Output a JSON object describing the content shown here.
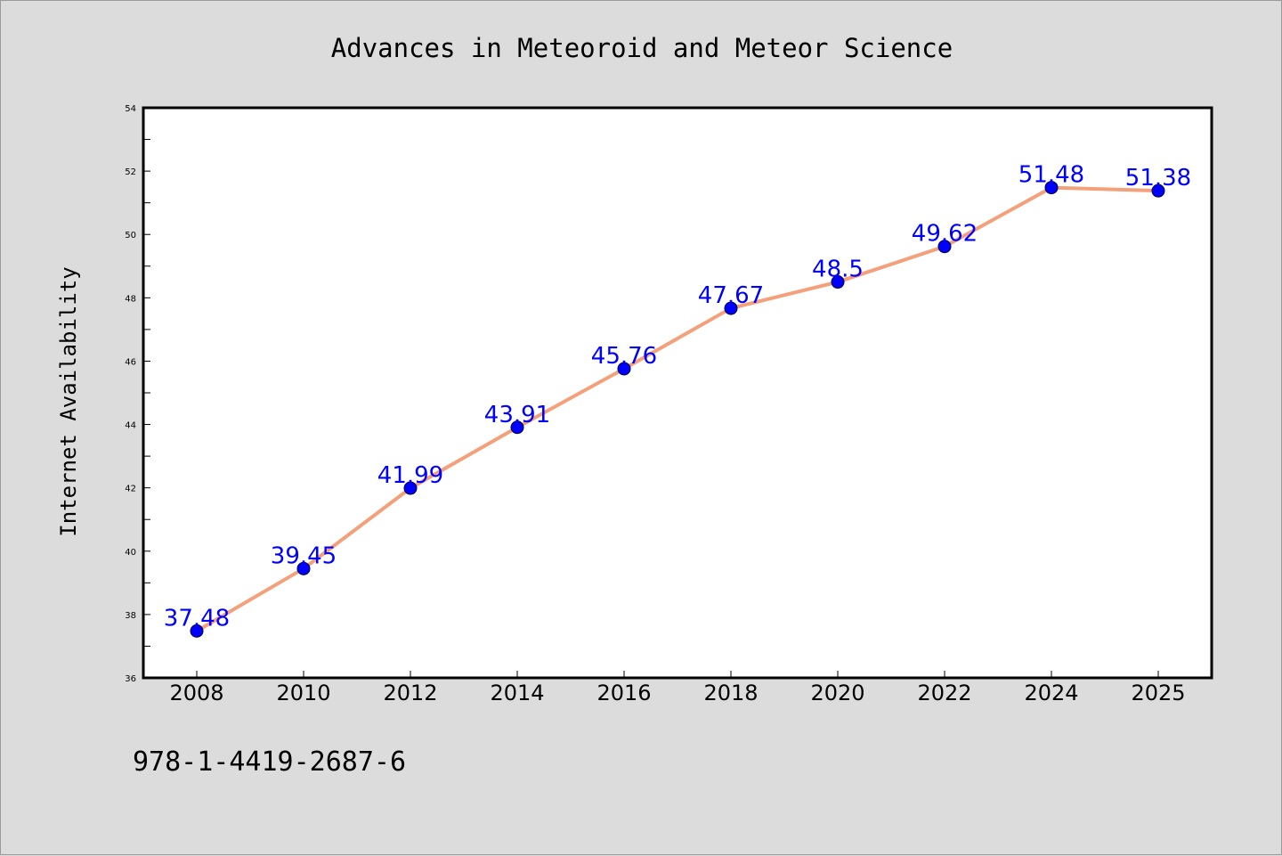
{
  "chart_data": {
    "type": "line",
    "title": "Advances in Meteoroid and Meteor Science",
    "xlabel": "",
    "ylabel": "Internet Availability",
    "categories": [
      "2008",
      "2010",
      "2012",
      "2014",
      "2016",
      "2018",
      "2020",
      "2022",
      "2024",
      "2025"
    ],
    "series": [
      {
        "values": [
          37.48,
          39.45,
          41.99,
          43.91,
          45.76,
          47.67,
          48.5,
          49.62,
          51.48,
          51.38
        ],
        "labels": [
          "37.48",
          "39.45",
          "41.99",
          "43.91",
          "45.76",
          "47.67",
          "48.5",
          "49.62",
          "51.48",
          "51.38"
        ],
        "line_color": "#f4a07a",
        "marker_color": "#0000ff"
      }
    ],
    "ylim": [
      36,
      54
    ],
    "yticks": [
      "36",
      "38",
      "40",
      "42",
      "44",
      "46",
      "48",
      "50",
      "52",
      "54"
    ],
    "grid": false,
    "legend": "none"
  },
  "footer": {
    "isbn": "978-1-4419-2687-6"
  }
}
